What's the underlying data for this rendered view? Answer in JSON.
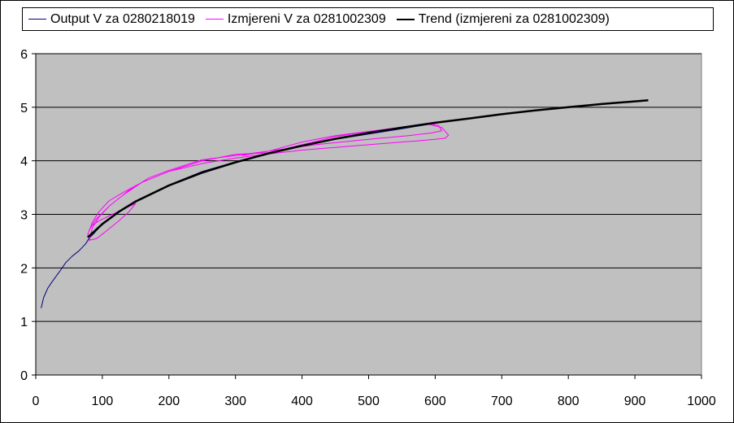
{
  "chart_data": {
    "type": "line",
    "title": "",
    "xlabel": "",
    "ylabel": "",
    "xlim": [
      0,
      1000
    ],
    "ylim": [
      0,
      6
    ],
    "x_ticks": [
      0,
      100,
      200,
      300,
      400,
      500,
      600,
      700,
      800,
      900,
      1000
    ],
    "y_ticks": [
      0,
      1,
      2,
      3,
      4,
      5,
      6
    ],
    "x_tick_labels": [
      "0",
      "100",
      "200",
      "300",
      "400",
      "500",
      "600",
      "700",
      "800",
      "900",
      "1000"
    ],
    "y_tick_labels": [
      "0",
      "1",
      "2",
      "3",
      "4",
      "5",
      "6"
    ],
    "grid": "horizontal",
    "plot_background": "#c0c0c0",
    "legend_position": "top",
    "series": [
      {
        "name": "Output V za 0280218019",
        "color": "#000080",
        "x": [
          8,
          12,
          18,
          25,
          35,
          45,
          55,
          65,
          75,
          80,
          90,
          100,
          120,
          150,
          200,
          250,
          300,
          350,
          400,
          450,
          500,
          550,
          600
        ],
        "y": [
          1.25,
          1.45,
          1.62,
          1.75,
          1.92,
          2.1,
          2.22,
          2.32,
          2.45,
          2.55,
          2.68,
          2.82,
          3.0,
          3.25,
          3.55,
          3.8,
          3.98,
          4.14,
          4.28,
          4.4,
          4.5,
          4.6,
          4.7
        ]
      },
      {
        "name": "Izmjereni V za 0281002309",
        "color": "#ff00ff",
        "x": [
          80,
          85,
          95,
          110,
          130,
          160,
          200,
          250,
          300,
          350,
          400,
          450,
          500,
          550,
          590,
          610,
          620,
          615,
          580,
          500,
          400,
          330,
          300,
          250,
          200,
          160,
          130,
          110,
          95,
          85,
          78,
          82,
          92,
          105,
          125,
          140,
          150,
          135,
          115,
          95,
          85,
          80,
          90,
          110,
          140,
          170,
          200,
          250,
          300,
          350,
          400,
          450,
          500,
          550,
          590,
          605,
          610,
          595,
          560,
          500,
          420,
          350,
          310
        ],
        "y": [
          2.5,
          2.75,
          2.95,
          3.15,
          3.35,
          3.6,
          3.8,
          4.0,
          4.12,
          4.15,
          4.3,
          4.45,
          4.55,
          4.62,
          4.68,
          4.62,
          4.48,
          4.42,
          4.38,
          4.3,
          4.2,
          4.1,
          4.05,
          3.95,
          3.8,
          3.6,
          3.4,
          3.25,
          3.05,
          2.85,
          2.62,
          2.52,
          2.55,
          2.68,
          2.88,
          3.05,
          3.2,
          3.12,
          3.0,
          2.88,
          2.8,
          2.7,
          2.9,
          3.15,
          3.45,
          3.68,
          3.82,
          4.02,
          4.1,
          4.18,
          4.35,
          4.47,
          4.55,
          4.63,
          4.7,
          4.66,
          4.56,
          4.52,
          4.47,
          4.4,
          4.3,
          4.18,
          4.1
        ]
      },
      {
        "name": "Trend (izmjereni za 0281002309)",
        "color": "#000000",
        "x": [
          78,
          100,
          125,
          150,
          200,
          250,
          300,
          350,
          400,
          450,
          500,
          550,
          600,
          650,
          700,
          750,
          800,
          850,
          900,
          920
        ],
        "y": [
          2.57,
          2.82,
          3.05,
          3.24,
          3.54,
          3.78,
          3.97,
          4.14,
          4.28,
          4.41,
          4.52,
          4.62,
          4.71,
          4.79,
          4.87,
          4.94,
          5.0,
          5.06,
          5.11,
          5.13
        ]
      }
    ]
  }
}
